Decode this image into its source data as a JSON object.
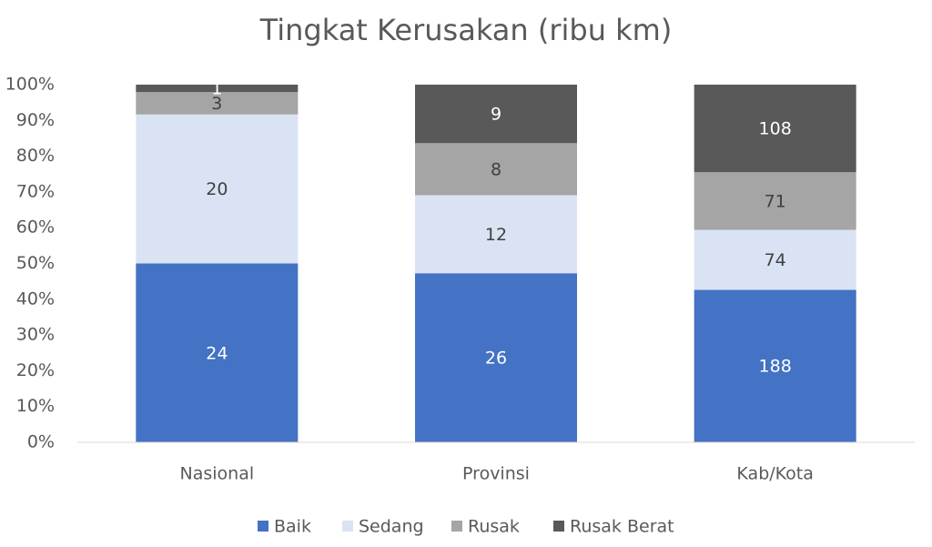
{
  "chart_data": {
    "type": "bar",
    "stacking": "percent",
    "title": "Tingkat Kerusakan (ribu km)",
    "categories": [
      "Nasional",
      "Provinsi",
      "Kab/Kota"
    ],
    "series": [
      {
        "name": "Baik",
        "color": "#4472c4",
        "label_color": "#ffffff",
        "values": [
          24,
          26,
          188
        ]
      },
      {
        "name": "Sedang",
        "color": "#dae3f3",
        "label_color": "#404040",
        "values": [
          20,
          12,
          74
        ]
      },
      {
        "name": "Rusak",
        "color": "#a5a5a5",
        "label_color": "#404040",
        "values": [
          3,
          8,
          71
        ]
      },
      {
        "name": "Rusak Berat",
        "color": "#595959",
        "label_color": "#ffffff",
        "values": [
          1,
          9,
          108
        ]
      }
    ],
    "ylim": [
      0,
      100
    ],
    "yticks": [
      {
        "value": 0,
        "label": "0%"
      },
      {
        "value": 10,
        "label": "10%"
      },
      {
        "value": 20,
        "label": "20%"
      },
      {
        "value": 30,
        "label": "30%"
      },
      {
        "value": 40,
        "label": "40%"
      },
      {
        "value": 50,
        "label": "50%"
      },
      {
        "value": 60,
        "label": "60%"
      },
      {
        "value": 70,
        "label": "70%"
      },
      {
        "value": 80,
        "label": "80%"
      },
      {
        "value": 90,
        "label": "90%"
      },
      {
        "value": 100,
        "label": "100%"
      }
    ],
    "grid": false,
    "legend": "bottom"
  }
}
